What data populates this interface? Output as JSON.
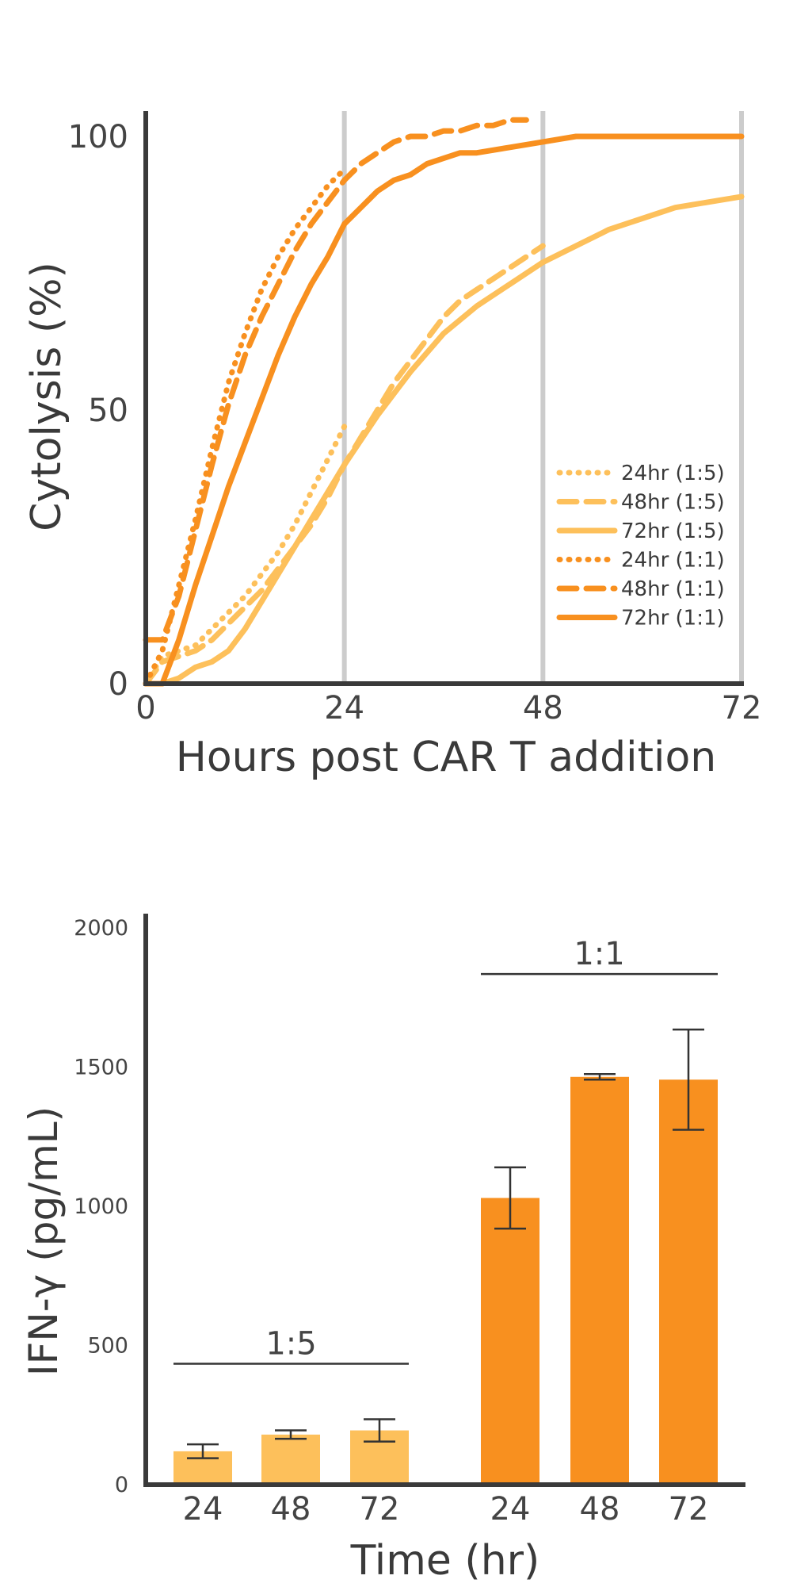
{
  "colors": {
    "light": "#FDC05B",
    "dark": "#F8901F",
    "axis": "#3a3a3a",
    "grid": "#cccccc",
    "errorbar": "#333333"
  },
  "chart_data": [
    {
      "type": "line",
      "xlabel": "Hours post CAR T addition",
      "ylabel": "Cytolysis (%)",
      "xlim": [
        0,
        72
      ],
      "ylim": [
        0,
        100
      ],
      "xticks": [
        "0",
        "24",
        "48",
        "72"
      ],
      "yticks": [
        "0",
        "50",
        "100"
      ],
      "vertical_gridlines_at": [
        24,
        48,
        72
      ],
      "legend_position": "bottom-right",
      "series": [
        {
          "name": "24hr (1:5)",
          "color": "light",
          "dash": "dotted",
          "x": [
            0,
            2,
            4,
            6,
            8,
            10,
            12,
            14,
            16,
            18,
            20,
            22,
            24
          ],
          "y": [
            0,
            5,
            6,
            7,
            10,
            13,
            16,
            20,
            24,
            29,
            35,
            41,
            47
          ]
        },
        {
          "name": "48hr (1:5)",
          "color": "light",
          "dash": "dashed",
          "x": [
            0,
            2,
            4,
            6,
            8,
            10,
            12,
            14,
            16,
            18,
            20,
            22,
            24,
            26,
            28,
            30,
            32,
            34,
            36,
            38,
            40,
            42,
            44,
            46,
            48
          ],
          "y": [
            0,
            4,
            5,
            6,
            8,
            11,
            14,
            17,
            21,
            25,
            29,
            34,
            40,
            45,
            50,
            55,
            59,
            63,
            67,
            70,
            72,
            74,
            76,
            78,
            80
          ]
        },
        {
          "name": "72hr (1:5)",
          "color": "light",
          "dash": "solid",
          "x": [
            0,
            2,
            4,
            6,
            8,
            10,
            12,
            14,
            16,
            18,
            20,
            22,
            24,
            28,
            32,
            36,
            40,
            44,
            48,
            52,
            56,
            60,
            64,
            68,
            72
          ],
          "y": [
            0,
            0,
            1,
            3,
            4,
            6,
            10,
            15,
            20,
            25,
            30,
            35,
            40,
            49,
            57,
            64,
            69,
            73,
            77,
            80,
            83,
            85,
            87,
            88,
            89
          ]
        },
        {
          "name": "24hr (1:1)",
          "color": "dark",
          "dash": "dotted",
          "x": [
            0,
            1,
            2,
            4,
            6,
            8,
            10,
            12,
            14,
            16,
            18,
            20,
            22,
            24
          ],
          "y": [
            0,
            3,
            6,
            18,
            30,
            43,
            55,
            64,
            72,
            78,
            83,
            87,
            91,
            94
          ]
        },
        {
          "name": "48hr (1:1)",
          "color": "dark",
          "dash": "dashed",
          "x": [
            0,
            2,
            4,
            6,
            8,
            10,
            12,
            14,
            16,
            18,
            20,
            22,
            24,
            26,
            28,
            30,
            32,
            34,
            36,
            38,
            40,
            42,
            44,
            46
          ],
          "y": [
            8,
            8,
            16,
            28,
            40,
            51,
            60,
            67,
            73,
            79,
            84,
            88,
            92,
            95,
            97,
            99,
            100,
            100,
            101,
            101,
            102,
            102,
            103,
            103
          ]
        },
        {
          "name": "72hr (1:1)",
          "color": "dark",
          "dash": "solid",
          "x": [
            0,
            2,
            4,
            6,
            8,
            10,
            12,
            14,
            16,
            18,
            20,
            22,
            24,
            26,
            28,
            30,
            32,
            34,
            36,
            38,
            40,
            44,
            48,
            52,
            56,
            60,
            64,
            68,
            72
          ],
          "y": [
            0,
            0,
            8,
            18,
            27,
            36,
            44,
            52,
            60,
            67,
            73,
            78,
            84,
            87,
            90,
            92,
            93,
            95,
            96,
            97,
            97,
            98,
            99,
            100,
            100,
            100,
            100,
            100,
            100
          ]
        }
      ]
    },
    {
      "type": "bar",
      "xlabel": "Time (hr)",
      "ylabel": "IFN-γ (pg/mL)",
      "ylim": [
        0,
        2000
      ],
      "yticks": [
        "0",
        "500",
        "1000",
        "1500",
        "2000"
      ],
      "groups": [
        {
          "label": "1:5",
          "color": "light",
          "categories": [
            "24",
            "48",
            "72"
          ],
          "values": [
            120,
            180,
            195
          ],
          "errors": [
            25,
            15,
            40
          ]
        },
        {
          "label": "1:1",
          "color": "dark",
          "categories": [
            "24",
            "48",
            "72"
          ],
          "values": [
            1030,
            1465,
            1455
          ],
          "errors": [
            110,
            10,
            180
          ]
        }
      ]
    }
  ]
}
